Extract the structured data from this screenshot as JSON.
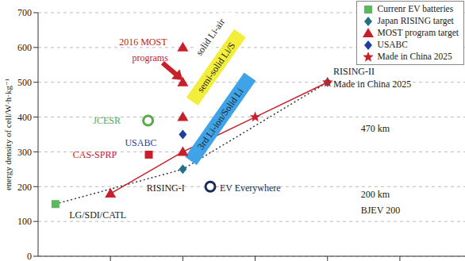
{
  "chart_data": {
    "type": "scatter",
    "y_label": "energy density of cell/W·h·kg⁻¹",
    "xlim": [
      0,
      5.9
    ],
    "xticks": [
      1,
      2,
      3,
      4,
      5
    ],
    "ylim": [
      0,
      700
    ],
    "yticks": [
      0,
      100,
      200,
      300,
      400,
      500,
      600,
      700
    ],
    "grid": true,
    "tick_labels": "y",
    "legend": "upper right",
    "series": [
      {
        "name": "Currenr EV batteries",
        "color": "#5cb85c",
        "marker": "square",
        "x": [
          0.24
        ],
        "values": [
          150
        ]
      },
      {
        "name": "Japan RISING target",
        "color": "#1f7088",
        "marker": "diamond",
        "x": [
          2,
          4
        ],
        "values": [
          250,
          500
        ]
      },
      {
        "name": "MOST program target",
        "color": "#c8202a",
        "marker": "triangle",
        "x": [
          1,
          2,
          2,
          2,
          2
        ],
        "values": [
          180,
          300,
          400,
          500,
          600
        ]
      },
      {
        "name": "USABC",
        "color": "#1f3f9f",
        "marker": "diamond",
        "x": [
          2
        ],
        "values": [
          350
        ]
      },
      {
        "name": "Made in China 2025",
        "color": "#c8202a",
        "marker": "star",
        "x": [
          3,
          4
        ],
        "values": [
          400,
          500
        ]
      }
    ],
    "trend_lines": [
      {
        "color": "#333355",
        "line_style": "dotted",
        "x": [
          0.24,
          2,
          4
        ],
        "values": [
          150,
          250,
          500
        ]
      },
      {
        "color": "#c8202a",
        "line_style": "solid",
        "x": [
          1,
          2,
          3,
          4
        ],
        "values": [
          180,
          300,
          400,
          500
        ]
      }
    ],
    "markers": [
      {
        "color": "#5aa84a",
        "marker": "open circle",
        "x": 1.52,
        "y": 390
      },
      {
        "color": "#c8202a",
        "marker": "square",
        "x": 1.53,
        "y": 292
      },
      {
        "color": "#1a2a55",
        "marker": "open circle",
        "x": 2.38,
        "y": 200
      }
    ],
    "annotations": [
      {
        "text": "2016 MOST",
        "color": "#c8202a",
        "x": 1.12,
        "y": 607
      },
      {
        "text": "programs",
        "color": "#c8202a",
        "x": 1.3,
        "y": 561
      },
      {
        "text": "JCESR",
        "color": "#5aa84a",
        "x": 0.76,
        "y": 380
      },
      {
        "text": "USABC",
        "color": "#1f3f9f",
        "x": 1.2,
        "y": 318
      },
      {
        "text": "CAS-SPRP",
        "color": "#c8202a",
        "x": 0.48,
        "y": 282
      },
      {
        "text": "RISING-I",
        "color": "#222222",
        "x": 1.5,
        "y": 188
      },
      {
        "text": "EV Everywhere",
        "color": "#1a2a55",
        "x": 2.51,
        "y": 188
      },
      {
        "text": "LG/SDI/CATL",
        "color": "#222222",
        "x": 0.43,
        "y": 110
      },
      {
        "text": "RISING-II",
        "color": "#222222",
        "x": 4.08,
        "y": 522
      },
      {
        "text": "Made in China 2025",
        "color": "#222222",
        "x": 4.08,
        "y": 485
      },
      {
        "text": "470 km",
        "color": "#222222",
        "x": 4.46,
        "y": 358
      },
      {
        "text": "200 km",
        "color": "#222222",
        "x": 4.46,
        "y": 169
      },
      {
        "text": "BJEV 200",
        "color": "#222222",
        "x": 4.46,
        "y": 122
      }
    ],
    "bands": [
      {
        "text": "solid Li-air",
        "color": "#ffffff",
        "x": 2.38,
        "y": 630
      },
      {
        "text": "semi-solid Li/S",
        "color": "#f3ee3a",
        "x": 2.46,
        "y": 543
      },
      {
        "text": "3rd Li-ion/Solid Li",
        "color": "#3fa3e8",
        "x": 2.52,
        "y": 395
      }
    ],
    "arrow": {
      "color": "#c8202a",
      "x": [
        1.72,
        1.95
      ],
      "values": [
        556,
        515
      ]
    }
  }
}
